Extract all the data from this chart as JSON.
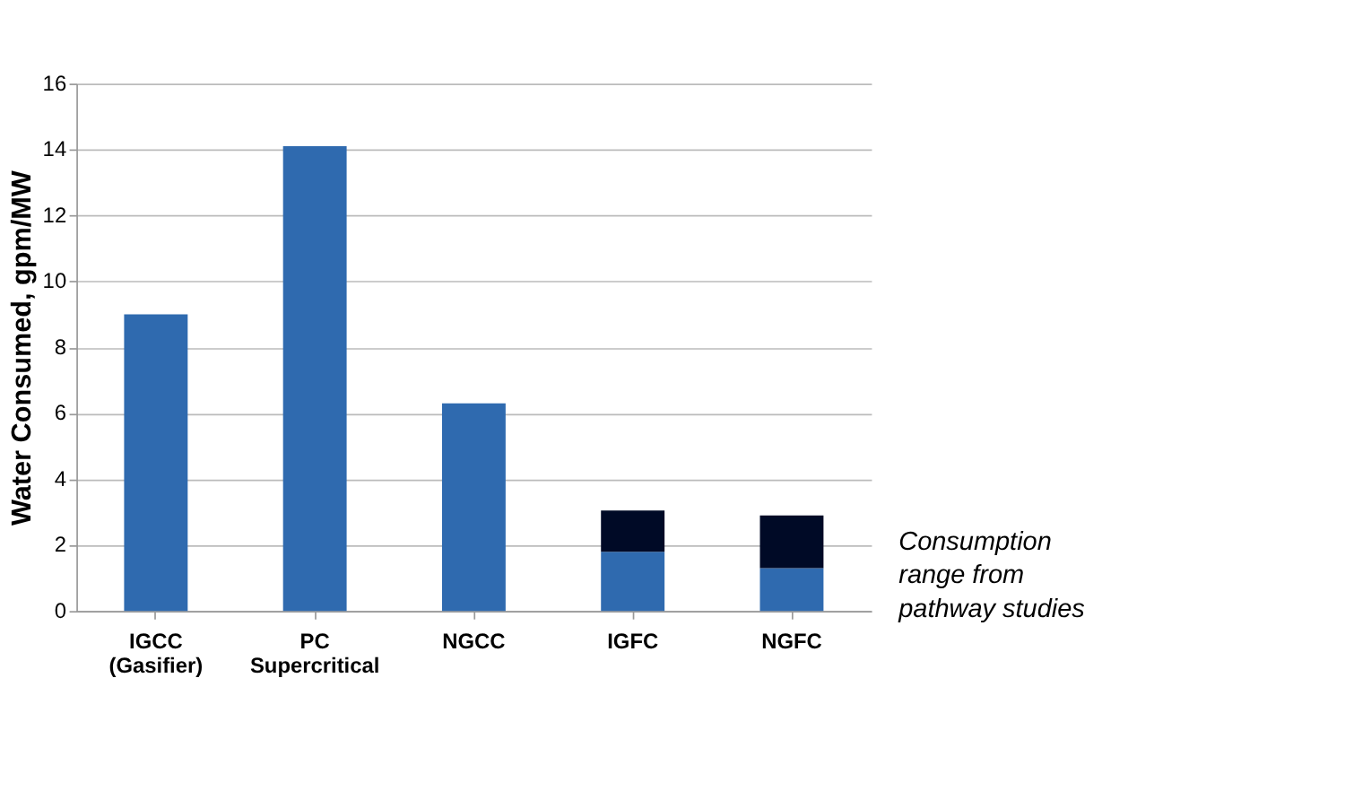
{
  "chart_data": {
    "type": "bar",
    "ylabel": "Water Consumed, gpm/MW",
    "categories": [
      "IGCC\n(Gasifier)",
      "PC\nSupercritical",
      "NGCC",
      "IGFC",
      "NGFC"
    ],
    "stacked": true,
    "series": [
      {
        "color": "#2f6aaf",
        "values": [
          9.0,
          14.1,
          6.3,
          1.8,
          1.3
        ]
      },
      {
        "color": "#000a26",
        "values": [
          null,
          null,
          null,
          1.25,
          1.6
        ]
      }
    ],
    "ylim": [
      0,
      16
    ],
    "yticks": [
      0,
      2,
      4,
      6,
      8,
      10,
      12,
      14,
      16
    ],
    "grid": "y",
    "annotations": [
      "Consumption\nrange from\npathway studies"
    ]
  }
}
